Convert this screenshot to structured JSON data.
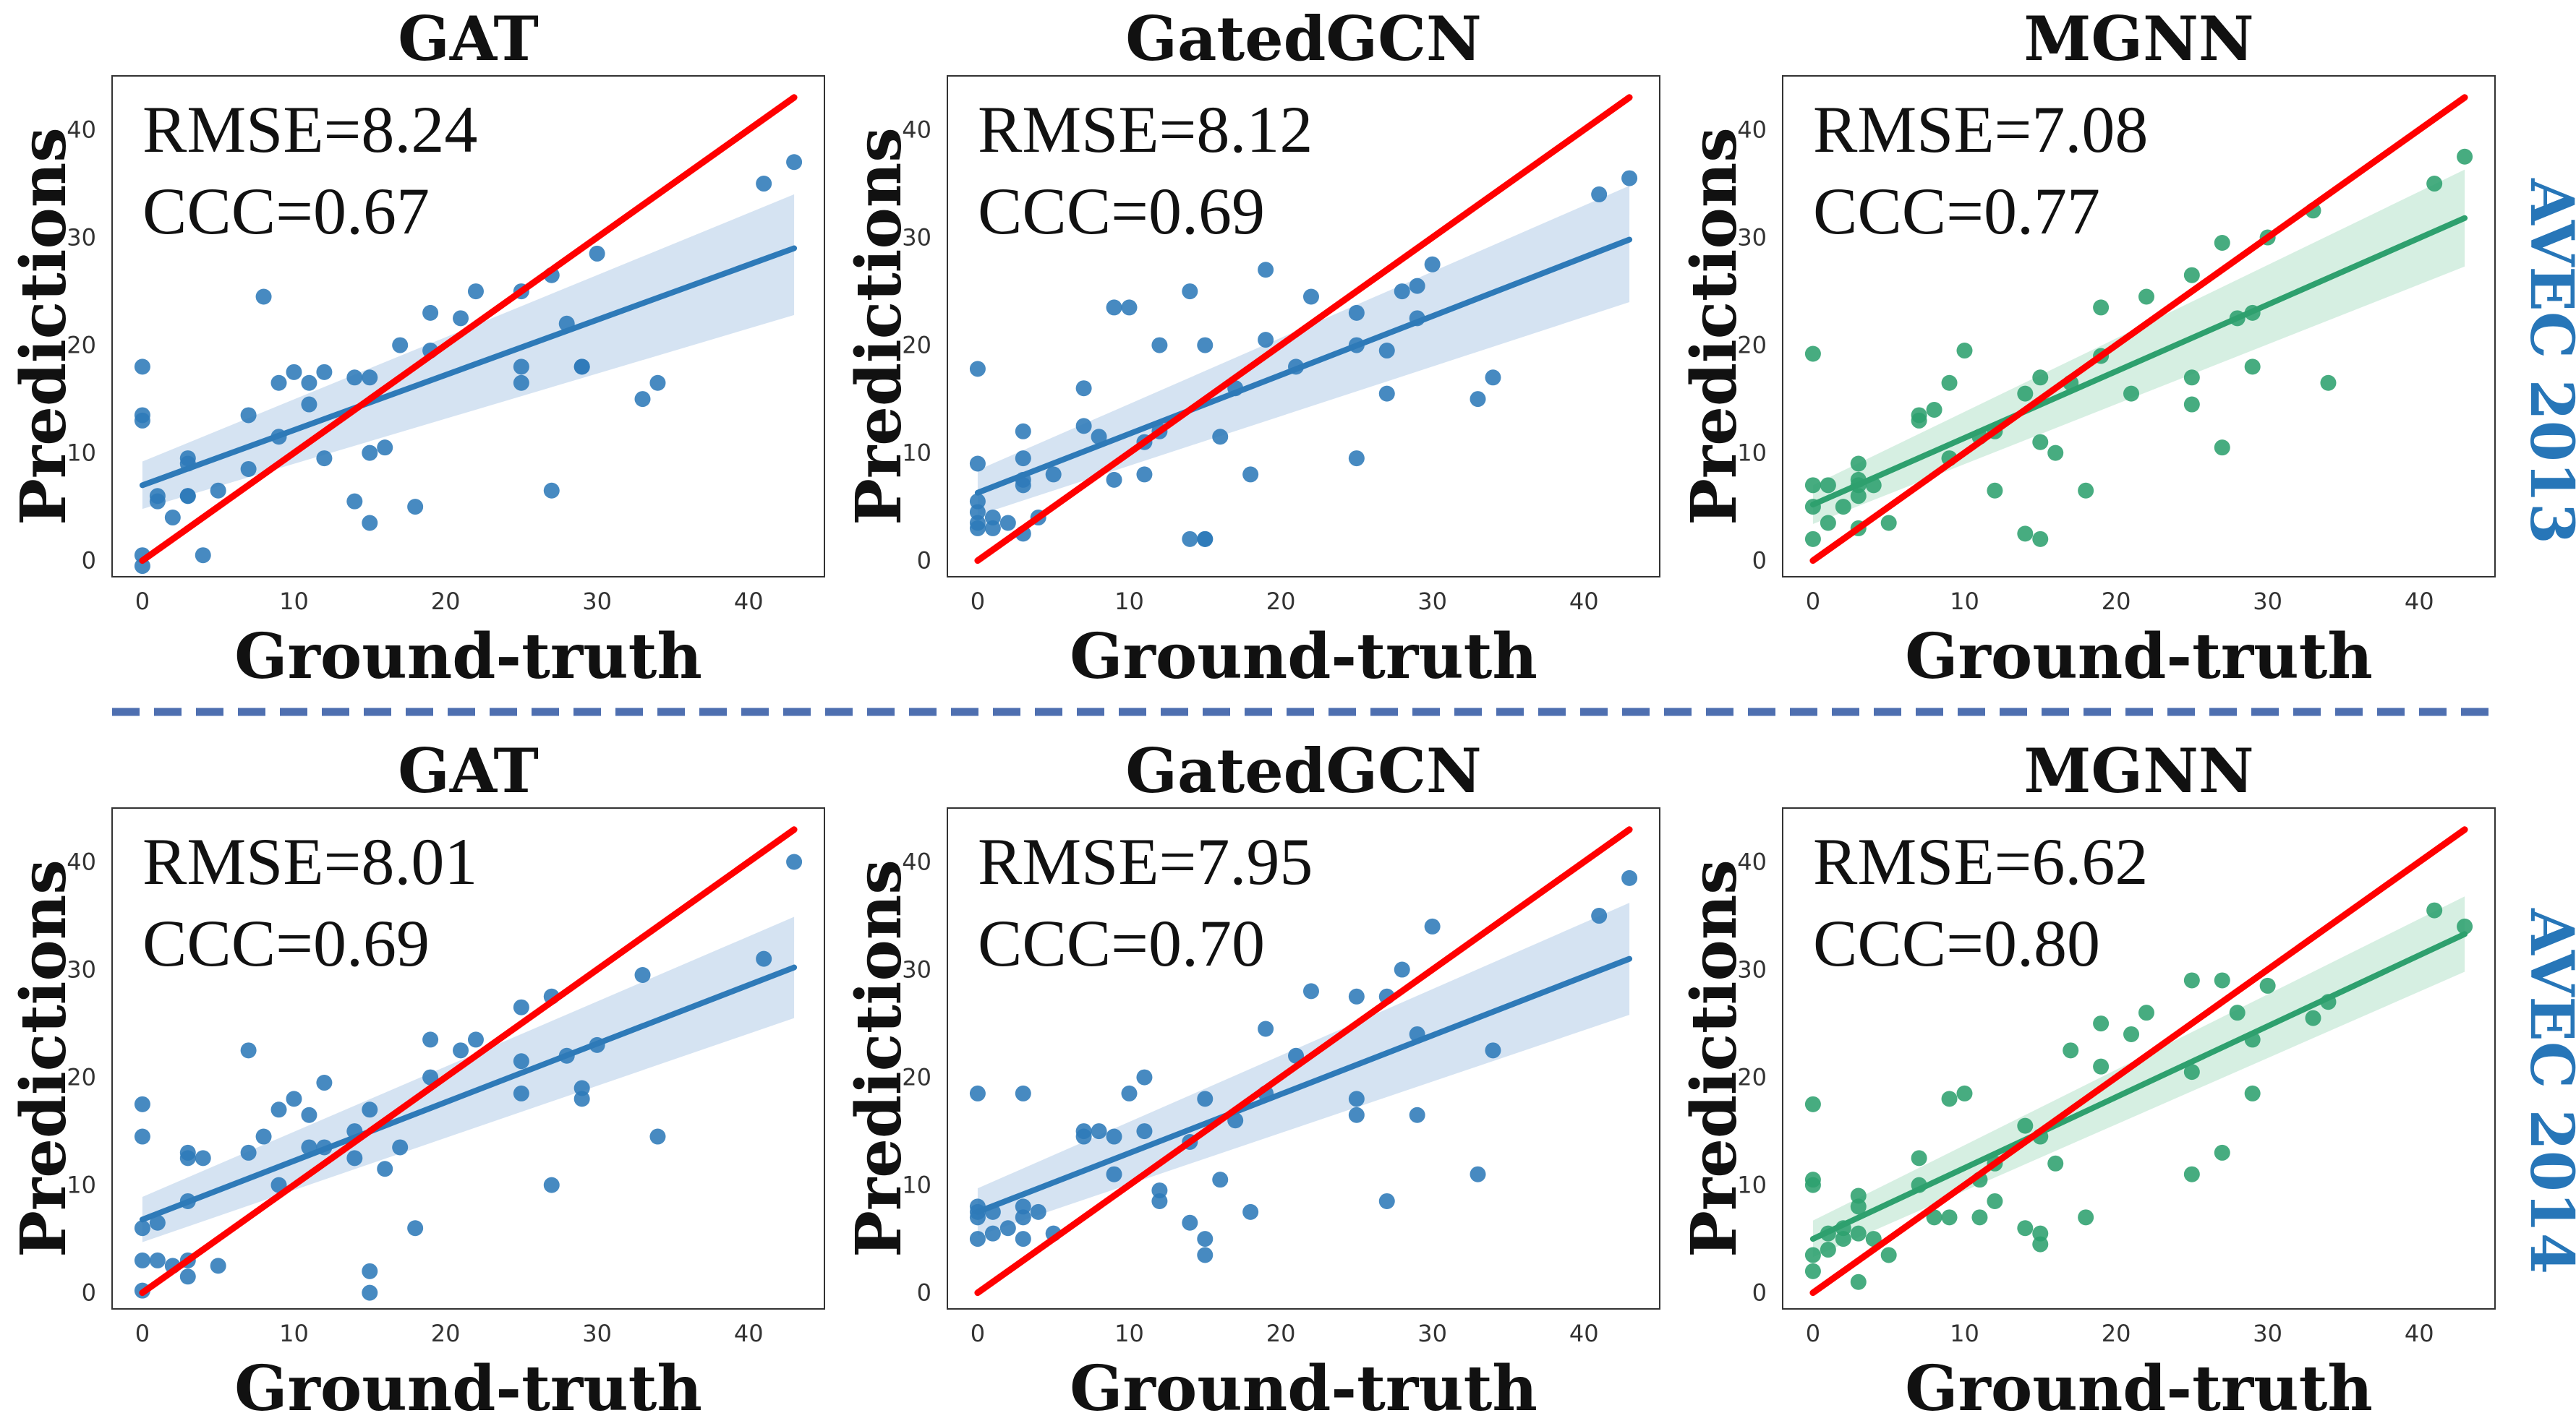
{
  "figure": {
    "row_labels": [
      "AVEC 2013",
      "AVEC 2014"
    ],
    "row_label_color": "#2776b8",
    "separator_color": "#4e6fb0",
    "identity_line_color": "#ff0000"
  },
  "chart_data": [
    {
      "type": "scatter",
      "row": 0,
      "col": 0,
      "title": "GAT",
      "xlabel": "Ground-truth",
      "ylabel": "Predictions",
      "metrics": [
        "RMSE=8.24",
        "CCC=0.67"
      ],
      "color": "#2e7ab8",
      "band_color": "#c7d9ee",
      "xlim": [
        -2,
        45
      ],
      "ylim": [
        -1.5,
        45
      ],
      "xticks": [
        0,
        10,
        20,
        30,
        40
      ],
      "yticks": [
        0,
        10,
        20,
        30,
        40
      ],
      "grid": false,
      "regression": {
        "x": [
          0,
          43
        ],
        "y": [
          7.0,
          29.0
        ],
        "lower": [
          4.8,
          22.8
        ],
        "upper": [
          9.2,
          34.0
        ]
      },
      "identity": [
        0,
        43
      ],
      "points": [
        [
          0,
          18
        ],
        [
          0,
          13.5
        ],
        [
          0,
          13
        ],
        [
          0,
          0.5
        ],
        [
          0,
          -0.5
        ],
        [
          1,
          6
        ],
        [
          1,
          5.5
        ],
        [
          2,
          4
        ],
        [
          3,
          6
        ],
        [
          3,
          9.5
        ],
        [
          3,
          9
        ],
        [
          3,
          6
        ],
        [
          4,
          0.5
        ],
        [
          5,
          6.5
        ],
        [
          7,
          8.5
        ],
        [
          7,
          13.5
        ],
        [
          8,
          24.5
        ],
        [
          9,
          16.5
        ],
        [
          9,
          11.5
        ],
        [
          10,
          17.5
        ],
        [
          11,
          16.5
        ],
        [
          11,
          14.5
        ],
        [
          12,
          17.5
        ],
        [
          12,
          9.5
        ],
        [
          14,
          17
        ],
        [
          14,
          5.5
        ],
        [
          15,
          17
        ],
        [
          15,
          10
        ],
        [
          15,
          3.5
        ],
        [
          16,
          10.5
        ],
        [
          17,
          20
        ],
        [
          18,
          5
        ],
        [
          19,
          23
        ],
        [
          19,
          19.5
        ],
        [
          21,
          22.5
        ],
        [
          22,
          25
        ],
        [
          25,
          25
        ],
        [
          25,
          18
        ],
        [
          25,
          16.5
        ],
        [
          27,
          26.5
        ],
        [
          27,
          6.5
        ],
        [
          28,
          22
        ],
        [
          29,
          18
        ],
        [
          29,
          18
        ],
        [
          30,
          28.5
        ],
        [
          33,
          15
        ],
        [
          34,
          16.5
        ],
        [
          41,
          35
        ],
        [
          43,
          37
        ]
      ]
    },
    {
      "type": "scatter",
      "row": 0,
      "col": 1,
      "title": "GatedGCN",
      "xlabel": "Ground-truth",
      "ylabel": "Predictions",
      "metrics": [
        "RMSE=8.12",
        "CCC=0.69"
      ],
      "color": "#2e7ab8",
      "band_color": "#c7d9ee",
      "xlim": [
        -2,
        45
      ],
      "ylim": [
        -1.5,
        45
      ],
      "xticks": [
        0,
        10,
        20,
        30,
        40
      ],
      "yticks": [
        0,
        10,
        20,
        30,
        40
      ],
      "grid": false,
      "regression": {
        "x": [
          0,
          43
        ],
        "y": [
          6.3,
          29.8
        ],
        "lower": [
          4.2,
          24.0
        ],
        "upper": [
          8.4,
          34.8
        ]
      },
      "identity": [
        0,
        43
      ],
      "points": [
        [
          0,
          17.8
        ],
        [
          0,
          9
        ],
        [
          0,
          5.5
        ],
        [
          0,
          4.5
        ],
        [
          0,
          3.5
        ],
        [
          0,
          3
        ],
        [
          1,
          4
        ],
        [
          1,
          3
        ],
        [
          2,
          3.5
        ],
        [
          3,
          12
        ],
        [
          3,
          9.5
        ],
        [
          3,
          7.5
        ],
        [
          3,
          7
        ],
        [
          3,
          2.5
        ],
        [
          4,
          4
        ],
        [
          5,
          8
        ],
        [
          7,
          16
        ],
        [
          7,
          12.5
        ],
        [
          8,
          11.5
        ],
        [
          9,
          7.5
        ],
        [
          9,
          23.5
        ],
        [
          10,
          23.5
        ],
        [
          11,
          11
        ],
        [
          11,
          8
        ],
        [
          12,
          20
        ],
        [
          12,
          12
        ],
        [
          14,
          25
        ],
        [
          14,
          2
        ],
        [
          15,
          20
        ],
        [
          15,
          2
        ],
        [
          15,
          2
        ],
        [
          16,
          11.5
        ],
        [
          17,
          16
        ],
        [
          18,
          8
        ],
        [
          19,
          27
        ],
        [
          19,
          20.5
        ],
        [
          21,
          18
        ],
        [
          22,
          24.5
        ],
        [
          25,
          23
        ],
        [
          25,
          20
        ],
        [
          25,
          9.5
        ],
        [
          27,
          19.5
        ],
        [
          27,
          15.5
        ],
        [
          28,
          25
        ],
        [
          29,
          25.5
        ],
        [
          29,
          22.5
        ],
        [
          30,
          27.5
        ],
        [
          33,
          15
        ],
        [
          34,
          17
        ],
        [
          41,
          34
        ],
        [
          43,
          35.5
        ]
      ]
    },
    {
      "type": "scatter",
      "row": 0,
      "col": 2,
      "title": "MGNN",
      "xlabel": "Ground-truth",
      "ylabel": "Predictions",
      "metrics": [
        "RMSE=7.08",
        "CCC=0.77"
      ],
      "color": "#2ea06e",
      "band_color": "#c8ead8",
      "xlim": [
        -2,
        45
      ],
      "ylim": [
        -1.5,
        45
      ],
      "xticks": [
        0,
        10,
        20,
        30,
        40
      ],
      "yticks": [
        0,
        10,
        20,
        30,
        40
      ],
      "grid": false,
      "regression": {
        "x": [
          0,
          43
        ],
        "y": [
          5.2,
          31.8
        ],
        "lower": [
          3.4,
          27.3
        ],
        "upper": [
          7.0,
          36.3
        ]
      },
      "identity": [
        0,
        43
      ],
      "points": [
        [
          0,
          19.2
        ],
        [
          0,
          7
        ],
        [
          0,
          5
        ],
        [
          0,
          2
        ],
        [
          1,
          7
        ],
        [
          1,
          3.5
        ],
        [
          2,
          5
        ],
        [
          3,
          9
        ],
        [
          3,
          7.5
        ],
        [
          3,
          7
        ],
        [
          3,
          6
        ],
        [
          3,
          3
        ],
        [
          4,
          7
        ],
        [
          5,
          3.5
        ],
        [
          7,
          13.5
        ],
        [
          7,
          13
        ],
        [
          8,
          14
        ],
        [
          9,
          16.5
        ],
        [
          9,
          9.5
        ],
        [
          10,
          19.5
        ],
        [
          11,
          11.5
        ],
        [
          12,
          12
        ],
        [
          12,
          6.5
        ],
        [
          14,
          15.5
        ],
        [
          14,
          2.5
        ],
        [
          15,
          17
        ],
        [
          15,
          11
        ],
        [
          15,
          2
        ],
        [
          16,
          10
        ],
        [
          17,
          16.5
        ],
        [
          18,
          6.5
        ],
        [
          19,
          23.5
        ],
        [
          19,
          19
        ],
        [
          21,
          15.5
        ],
        [
          22,
          24.5
        ],
        [
          25,
          26.5
        ],
        [
          25,
          17
        ],
        [
          25,
          14.5
        ],
        [
          27,
          29.5
        ],
        [
          27,
          10.5
        ],
        [
          28,
          22.5
        ],
        [
          29,
          23
        ],
        [
          29,
          18
        ],
        [
          30,
          30
        ],
        [
          33,
          32.5
        ],
        [
          34,
          16.5
        ],
        [
          41,
          35
        ],
        [
          43,
          37.5
        ]
      ]
    },
    {
      "type": "scatter",
      "row": 1,
      "col": 0,
      "title": "GAT",
      "xlabel": "Ground-truth",
      "ylabel": "Predictions",
      "metrics": [
        "RMSE=8.01",
        "CCC=0.69"
      ],
      "color": "#2e7ab8",
      "band_color": "#c7d9ee",
      "xlim": [
        -2,
        45
      ],
      "ylim": [
        -1.5,
        45
      ],
      "xticks": [
        0,
        10,
        20,
        30,
        40
      ],
      "yticks": [
        0,
        10,
        20,
        30,
        40
      ],
      "grid": false,
      "regression": {
        "x": [
          0,
          43
        ],
        "y": [
          6.8,
          30.2
        ],
        "lower": [
          4.7,
          25.5
        ],
        "upper": [
          8.9,
          34.9
        ]
      },
      "identity": [
        0,
        43
      ],
      "points": [
        [
          0,
          17.5
        ],
        [
          0,
          14.5
        ],
        [
          0,
          6
        ],
        [
          0,
          3
        ],
        [
          0,
          0.2
        ],
        [
          1,
          6.5
        ],
        [
          1,
          3
        ],
        [
          2,
          2.5
        ],
        [
          3,
          13
        ],
        [
          3,
          12.5
        ],
        [
          3,
          8.5
        ],
        [
          3,
          3
        ],
        [
          3,
          1.5
        ],
        [
          4,
          12.5
        ],
        [
          5,
          2.5
        ],
        [
          7,
          22.5
        ],
        [
          7,
          13
        ],
        [
          8,
          14.5
        ],
        [
          9,
          17
        ],
        [
          9,
          10
        ],
        [
          10,
          18
        ],
        [
          11,
          16.5
        ],
        [
          11,
          13.5
        ],
        [
          12,
          19.5
        ],
        [
          12,
          13.5
        ],
        [
          14,
          15
        ],
        [
          14,
          12.5
        ],
        [
          15,
          17
        ],
        [
          15,
          2
        ],
        [
          15,
          0
        ],
        [
          16,
          11.5
        ],
        [
          17,
          13.5
        ],
        [
          18,
          6
        ],
        [
          19,
          23.5
        ],
        [
          19,
          20
        ],
        [
          21,
          22.5
        ],
        [
          22,
          23.5
        ],
        [
          25,
          26.5
        ],
        [
          25,
          21.5
        ],
        [
          25,
          18.5
        ],
        [
          27,
          27.5
        ],
        [
          27,
          10
        ],
        [
          28,
          22
        ],
        [
          29,
          19
        ],
        [
          29,
          18
        ],
        [
          30,
          23
        ],
        [
          33,
          29.5
        ],
        [
          34,
          14.5
        ],
        [
          41,
          31
        ],
        [
          43,
          40
        ]
      ]
    },
    {
      "type": "scatter",
      "row": 1,
      "col": 1,
      "title": "GatedGCN",
      "xlabel": "Ground-truth",
      "ylabel": "Predictions",
      "metrics": [
        "RMSE=7.95",
        "CCC=0.70"
      ],
      "color": "#2e7ab8",
      "band_color": "#c7d9ee",
      "xlim": [
        -2,
        45
      ],
      "ylim": [
        -1.5,
        45
      ],
      "xticks": [
        0,
        10,
        20,
        30,
        40
      ],
      "yticks": [
        0,
        10,
        20,
        30,
        40
      ],
      "grid": false,
      "regression": {
        "x": [
          0,
          43
        ],
        "y": [
          7.5,
          31.0
        ],
        "lower": [
          5.3,
          25.8
        ],
        "upper": [
          9.7,
          36.2
        ]
      },
      "identity": [
        0,
        43
      ],
      "points": [
        [
          0,
          18.5
        ],
        [
          0,
          8
        ],
        [
          0,
          7.5
        ],
        [
          0,
          7
        ],
        [
          0,
          5
        ],
        [
          1,
          7.5
        ],
        [
          1,
          5.5
        ],
        [
          2,
          6
        ],
        [
          3,
          18.5
        ],
        [
          3,
          8
        ],
        [
          3,
          7
        ],
        [
          3,
          5
        ],
        [
          4,
          7.5
        ],
        [
          5,
          5.5
        ],
        [
          7,
          15
        ],
        [
          7,
          14.5
        ],
        [
          8,
          15
        ],
        [
          9,
          14.5
        ],
        [
          9,
          11
        ],
        [
          10,
          18.5
        ],
        [
          11,
          20
        ],
        [
          11,
          15
        ],
        [
          12,
          9.5
        ],
        [
          12,
          8.5
        ],
        [
          14,
          14
        ],
        [
          14,
          6.5
        ],
        [
          15,
          18
        ],
        [
          15,
          5
        ],
        [
          15,
          3.5
        ],
        [
          16,
          10.5
        ],
        [
          17,
          16
        ],
        [
          18,
          7.5
        ],
        [
          19,
          24.5
        ],
        [
          19,
          18.5
        ],
        [
          21,
          22
        ],
        [
          22,
          28
        ],
        [
          25,
          27.5
        ],
        [
          25,
          18
        ],
        [
          25,
          16.5
        ],
        [
          27,
          27.5
        ],
        [
          27,
          8.5
        ],
        [
          28,
          30
        ],
        [
          29,
          24
        ],
        [
          29,
          16.5
        ],
        [
          30,
          34
        ],
        [
          33,
          11
        ],
        [
          34,
          22.5
        ],
        [
          41,
          35
        ],
        [
          43,
          38.5
        ]
      ]
    },
    {
      "type": "scatter",
      "row": 1,
      "col": 2,
      "title": "MGNN",
      "xlabel": "Ground-truth",
      "ylabel": "Predictions",
      "metrics": [
        "RMSE=6.62",
        "CCC=0.80"
      ],
      "color": "#2ea06e",
      "band_color": "#c8ead8",
      "xlim": [
        -2,
        45
      ],
      "ylim": [
        -1.5,
        45
      ],
      "xticks": [
        0,
        10,
        20,
        30,
        40
      ],
      "yticks": [
        0,
        10,
        20,
        30,
        40
      ],
      "grid": false,
      "regression": {
        "x": [
          0,
          43
        ],
        "y": [
          5.0,
          33.3
        ],
        "lower": [
          3.3,
          29.8
        ],
        "upper": [
          6.7,
          36.8
        ]
      },
      "identity": [
        0,
        43
      ],
      "points": [
        [
          0,
          17.5
        ],
        [
          0,
          10.5
        ],
        [
          0,
          10
        ],
        [
          0,
          3.5
        ],
        [
          0,
          2
        ],
        [
          1,
          5.5
        ],
        [
          1,
          4
        ],
        [
          2,
          6
        ],
        [
          2,
          5
        ],
        [
          3,
          9
        ],
        [
          3,
          8
        ],
        [
          3,
          5.5
        ],
        [
          3,
          1
        ],
        [
          4,
          5
        ],
        [
          5,
          3.5
        ],
        [
          7,
          12.5
        ],
        [
          7,
          10
        ],
        [
          8,
          7
        ],
        [
          9,
          18
        ],
        [
          9,
          7
        ],
        [
          10,
          18.5
        ],
        [
          11,
          10.5
        ],
        [
          11,
          7
        ],
        [
          12,
          12
        ],
        [
          12,
          8.5
        ],
        [
          14,
          15.5
        ],
        [
          14,
          6
        ],
        [
          15,
          14.5
        ],
        [
          15,
          5.5
        ],
        [
          15,
          4.5
        ],
        [
          16,
          12
        ],
        [
          17,
          22.5
        ],
        [
          18,
          7
        ],
        [
          19,
          25
        ],
        [
          19,
          21
        ],
        [
          21,
          24
        ],
        [
          22,
          26
        ],
        [
          25,
          29
        ],
        [
          25,
          20.5
        ],
        [
          25,
          11
        ],
        [
          27,
          29
        ],
        [
          27,
          13
        ],
        [
          28,
          26
        ],
        [
          29,
          23.5
        ],
        [
          29,
          18.5
        ],
        [
          30,
          28.5
        ],
        [
          33,
          25.5
        ],
        [
          34,
          27
        ],
        [
          41,
          35.5
        ],
        [
          43,
          34
        ]
      ]
    }
  ]
}
